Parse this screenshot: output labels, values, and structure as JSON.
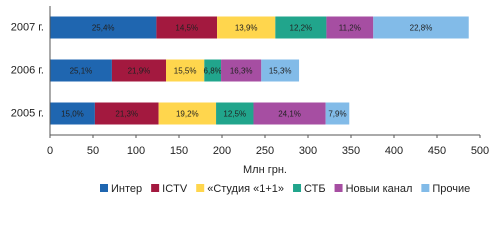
{
  "chart_data": {
    "type": "stacked-bar-horizontal",
    "categories": [
      "2007 г.",
      "2006 г.",
      "2005 г."
    ],
    "x_label": "Млн грн.",
    "xlim": [
      0,
      500
    ],
    "xticks": [
      0,
      50,
      100,
      150,
      200,
      250,
      300,
      350,
      400,
      450,
      500
    ],
    "series": [
      {
        "name": "Интер",
        "color": "#1f66b0",
        "values": [
          123.7,
          72.0,
          52.2
        ],
        "labels": [
          "25,4%",
          "25,1%",
          "15,0%"
        ]
      },
      {
        "name": "ICTV",
        "color": "#a3193f",
        "values": [
          70.6,
          62.9,
          74.1
        ],
        "labels": [
          "14,5%",
          "21,9%",
          "21,3%"
        ]
      },
      {
        "name": "«Студия «1+1»",
        "color": "#ffd64d",
        "values": [
          67.7,
          44.5,
          66.8
        ],
        "labels": [
          "13,9%",
          "15,5%",
          "19,2%"
        ]
      },
      {
        "name": "СТБ",
        "color": "#21a58c",
        "values": [
          59.4,
          19.5,
          43.5
        ],
        "labels": [
          "12,2%",
          "6,8%",
          "12,5%"
        ]
      },
      {
        "name": "Новыи канал",
        "color": "#a64ea2",
        "values": [
          54.5,
          46.8,
          83.9
        ],
        "labels": [
          "11,2%",
          "16,3%",
          "24,1%"
        ]
      },
      {
        "name": "Прочие",
        "color": "#82bbe8",
        "values": [
          111.0,
          43.9,
          27.5
        ],
        "labels": [
          "22,8%",
          "15,3%",
          "7,9%"
        ]
      }
    ]
  }
}
